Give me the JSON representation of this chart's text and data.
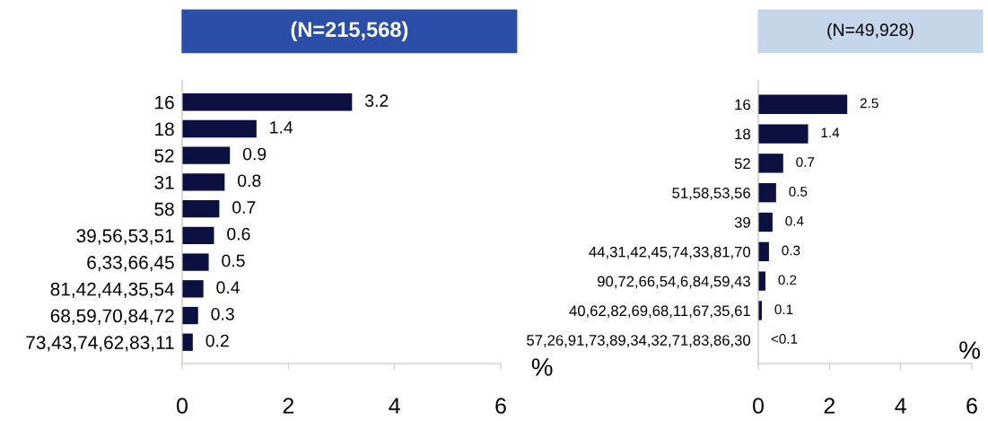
{
  "chart_data": [
    {
      "type": "bar",
      "orientation": "horizontal",
      "title": "(N=215,568)",
      "xlabel": "%",
      "categories": [
        "16",
        "18",
        "52",
        "31",
        "58",
        "39,56,53,51",
        "6,33,66,45",
        "81,42,44,35,54",
        "68,59,70,84,72",
        "73,43,74,62,83,11"
      ],
      "values": [
        3.2,
        1.4,
        0.9,
        0.8,
        0.7,
        0.6,
        0.5,
        0.4,
        0.3,
        0.2
      ],
      "color": "#0b1040",
      "xlim": [
        0,
        6
      ],
      "xticks": [
        0,
        2,
        4,
        6
      ],
      "data_labels": true,
      "grid": false,
      "legend": false
    },
    {
      "type": "bar",
      "orientation": "horizontal",
      "title": "(N=49,928)",
      "xlabel": "%",
      "categories": [
        "16",
        "18",
        "52",
        "51,58,53,56",
        "39",
        "44,31,42,45,74,33,81,70",
        "90,72,66,54,6,84,59,43",
        "40,62,82,69,68,11,67,35,61",
        "57,26,91,73,89,34,32,71,83,86,30"
      ],
      "values": [
        2.5,
        1.4,
        0.7,
        0.5,
        0.4,
        0.3,
        0.2,
        0.1,
        null
      ],
      "value_labels": [
        "2.5",
        "1.4",
        "0.7",
        "0.5",
        "0.4",
        "0.3",
        "0.2",
        "0.1",
        "<0.1"
      ],
      "color": "#0b1040",
      "xlim": [
        0,
        6
      ],
      "xticks": [
        0,
        2,
        4,
        6
      ],
      "grid": false,
      "legend": false
    }
  ]
}
